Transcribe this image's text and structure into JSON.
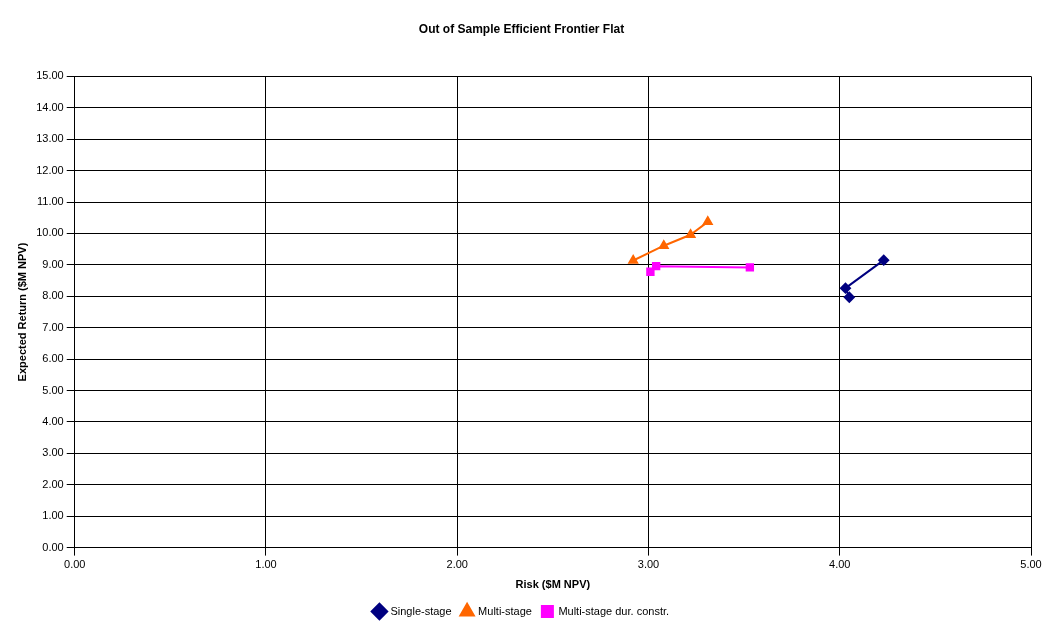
{
  "chart_data": {
    "type": "line",
    "title": "Out of Sample Efficient Frontier Flat",
    "xlabel": "Risk ($M NPV)",
    "ylabel": "Expected Return ($M NPV)",
    "xlim": [
      0,
      5
    ],
    "xticks": [
      {
        "value": 0,
        "label": "0.00"
      },
      {
        "value": 1,
        "label": "1.00"
      },
      {
        "value": 2,
        "label": "2.00"
      },
      {
        "value": 3,
        "label": "3.00"
      },
      {
        "value": 4,
        "label": "4.00"
      },
      {
        "value": 5,
        "label": "5.00"
      }
    ],
    "ylim": [
      0,
      15
    ],
    "yticks": [
      {
        "value": 0,
        "label": "0.00"
      },
      {
        "value": 1,
        "label": "1.00"
      },
      {
        "value": 2,
        "label": "2.00"
      },
      {
        "value": 3,
        "label": "3.00"
      },
      {
        "value": 4,
        "label": "4.00"
      },
      {
        "value": 5,
        "label": "5.00"
      },
      {
        "value": 6,
        "label": "6.00"
      },
      {
        "value": 7,
        "label": "7.00"
      },
      {
        "value": 8,
        "label": "8.00"
      },
      {
        "value": 9,
        "label": "9.00"
      },
      {
        "value": 10,
        "label": "10.00"
      },
      {
        "value": 11,
        "label": "11.00"
      },
      {
        "value": 12,
        "label": "12.00"
      },
      {
        "value": 13,
        "label": "13.00"
      },
      {
        "value": 14,
        "label": "14.00"
      },
      {
        "value": 15,
        "label": "15.00"
      }
    ],
    "grid": true,
    "legend": "bottom",
    "series": [
      {
        "name": "Single-stage",
        "color": "#000080",
        "marker": "diamond",
        "x": [
          4.05,
          4.03,
          4.23
        ],
        "values": [
          7.97,
          8.26,
          9.15
        ]
      },
      {
        "name": "Multi-stage",
        "color": "#ff6600",
        "marker": "triangle",
        "x": [
          2.92,
          3.08,
          3.22,
          3.31
        ],
        "values": [
          9.14,
          9.61,
          9.96,
          10.37
        ]
      },
      {
        "name": "Multi-stage dur. constr.",
        "color": "#ff00ff",
        "marker": "square",
        "x": [
          3.01,
          3.04,
          3.53
        ],
        "values": [
          8.78,
          8.96,
          8.92
        ]
      }
    ]
  }
}
